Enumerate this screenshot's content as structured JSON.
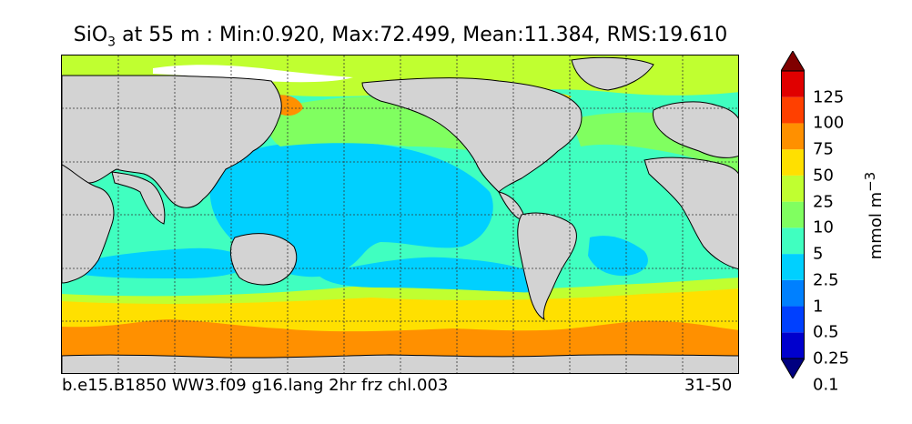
{
  "title": {
    "var": "SiO",
    "var_sub": "3",
    "rest": " at 55 m : Min:0.920, Max:72.499, Mean:11.384, RMS:19.610"
  },
  "caption_left": "b.e15.B1850 WW3.f09 g16.lang 2hr frz chl.003",
  "caption_right": "31-50",
  "colorbar": {
    "unit": "mmol m",
    "unit_sup": "−3",
    "labels": [
      "125",
      "100",
      "75",
      "50",
      "25",
      "10",
      "5",
      "2.5",
      "1",
      "0.5",
      "0.25",
      "0.1"
    ],
    "colors": [
      "#000080",
      "#0000cd",
      "#0040ff",
      "#0080ff",
      "#00d0ff",
      "#40ffc0",
      "#80ff60",
      "#c0ff30",
      "#ffe000",
      "#ff9000",
      "#ff4000",
      "#e00000",
      "#800000"
    ],
    "extend": "both"
  },
  "map_colors": {
    "land": "#d3d3d3",
    "no_data": "#ffffff",
    "level_1": "#00d0ff",
    "level_2_5": "#40ffc0",
    "level_5": "#80ff60",
    "level_10": "#c0ff30",
    "level_25": "#ffe000",
    "level_50": "#ff9000",
    "gridline": "#333333"
  }
}
